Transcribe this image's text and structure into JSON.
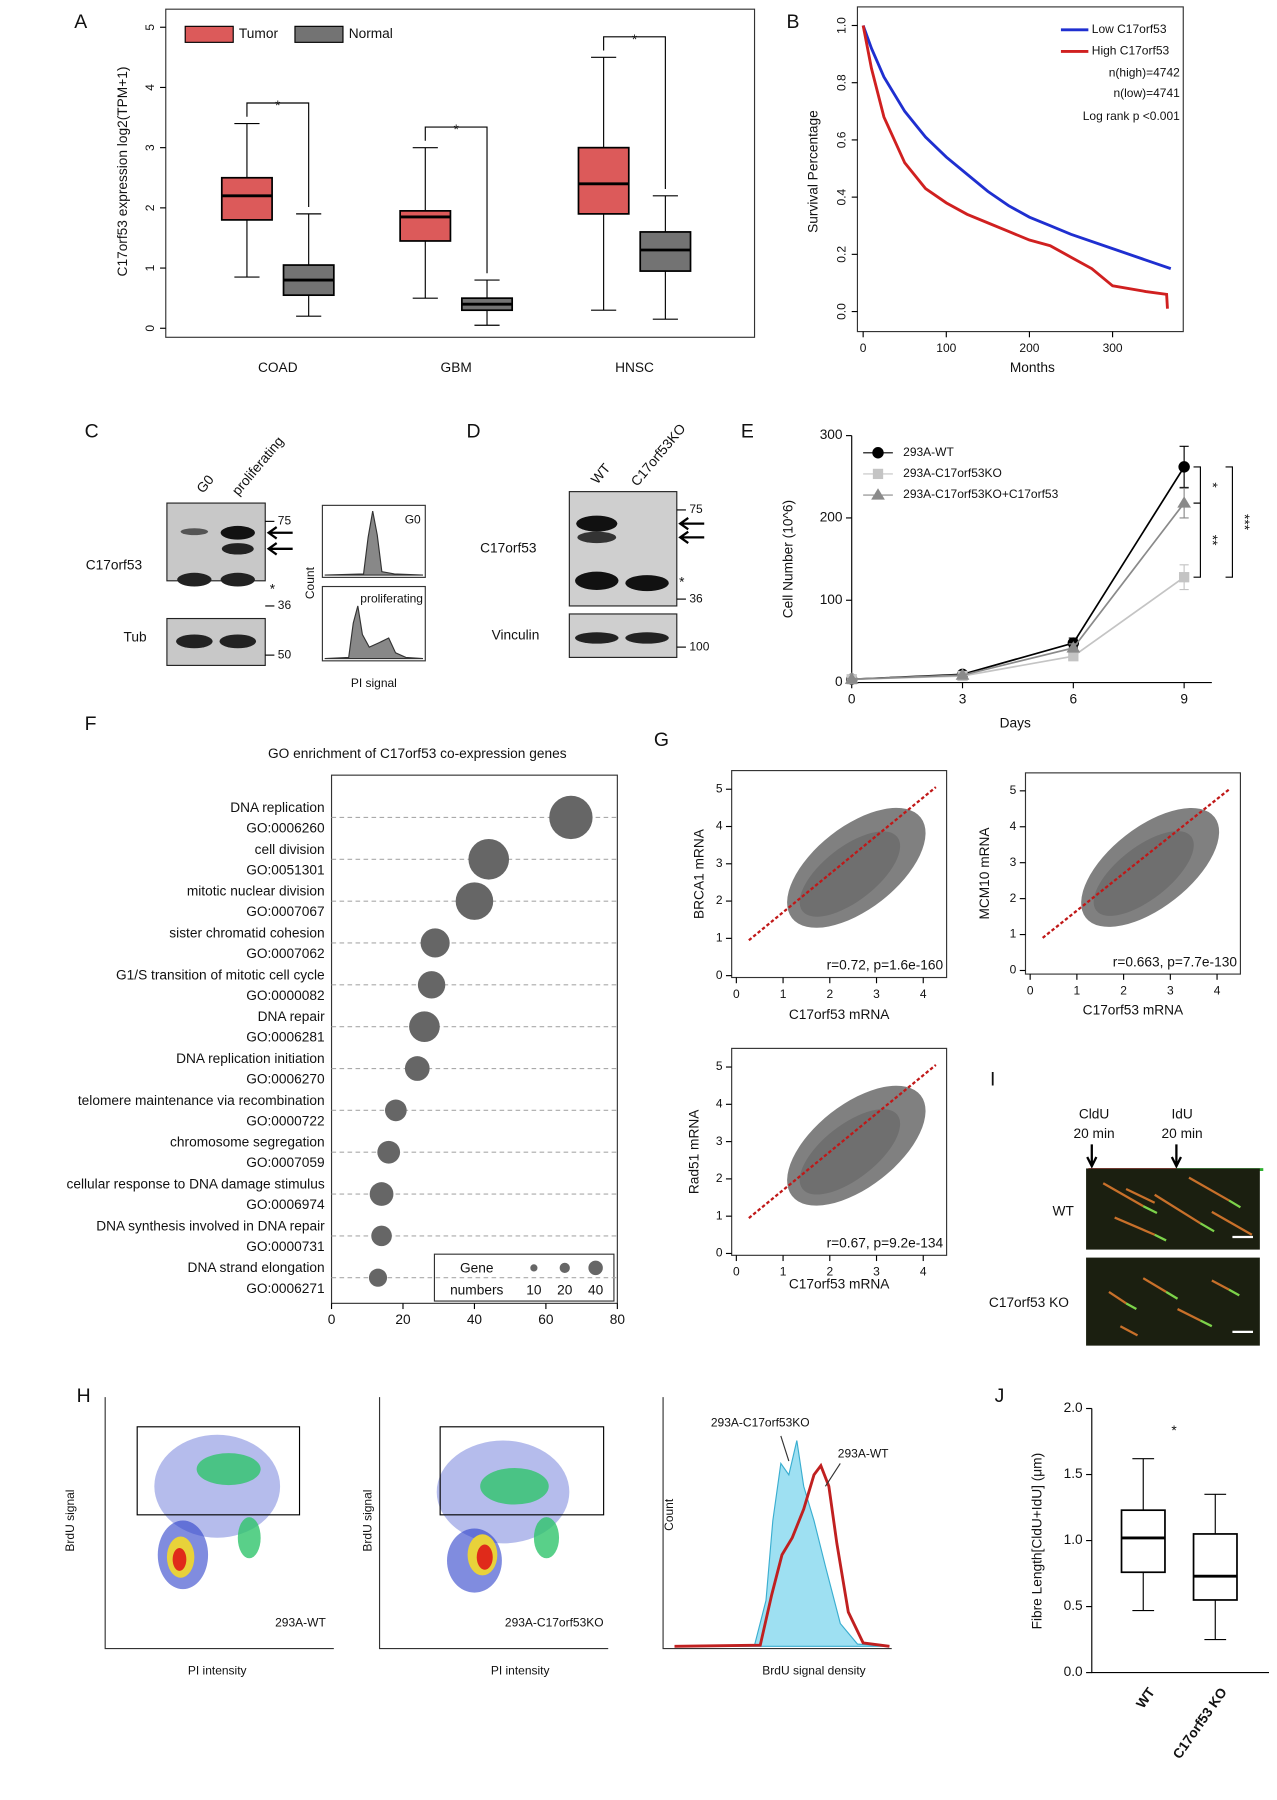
{
  "panels": {
    "A": {
      "label": "A",
      "type": "box",
      "ylabel": "C17orf53 expression log2(TPM+1)",
      "ylim": [
        -0.15,
        5.3
      ],
      "yticks": [
        0,
        1,
        2,
        3,
        4,
        5
      ],
      "categories": [
        "COAD",
        "GBM",
        "HNSC"
      ],
      "series": [
        {
          "name": "Tumor",
          "color": "#dc5a5a",
          "boxes": [
            {
              "min": 0.85,
              "q1": 1.8,
              "median": 2.2,
              "q3": 2.5,
              "max": 3.4
            },
            {
              "min": 0.5,
              "q1": 1.45,
              "median": 1.85,
              "q3": 1.95,
              "max": 3.0
            },
            {
              "min": 0.3,
              "q1": 1.9,
              "median": 2.4,
              "q3": 3.0,
              "max": 4.5
            }
          ]
        },
        {
          "name": "Normal",
          "color": "#737373",
          "boxes": [
            {
              "min": 0.2,
              "q1": 0.55,
              "median": 0.8,
              "q3": 1.05,
              "max": 1.9
            },
            {
              "min": 0.05,
              "q1": 0.3,
              "median": 0.4,
              "q3": 0.5,
              "max": 0.8
            },
            {
              "min": 0.15,
              "q1": 0.95,
              "median": 1.3,
              "q3": 1.6,
              "max": 2.2
            }
          ]
        }
      ],
      "significance": [
        "*",
        "*",
        "*"
      ]
    },
    "B": {
      "label": "B",
      "type": "line",
      "xlabel": "Months",
      "ylabel": "Survival Percentage",
      "xlim": [
        0,
        385
      ],
      "xticks": [
        0,
        100,
        200,
        300
      ],
      "ylim": [
        -0.07,
        1.065
      ],
      "yticks": [
        {
          "value": 0,
          "label": "0.0"
        },
        0.2,
        0.4,
        0.6,
        0.8,
        {
          "value": 1,
          "label": "1.0"
        }
      ],
      "series": [
        {
          "name": "Low C17orf53",
          "color": "#1f2fd0",
          "x": [
            0,
            10,
            25,
            50,
            75,
            100,
            125,
            150,
            175,
            200,
            225,
            250,
            300,
            350,
            370
          ],
          "values": [
            1,
            0.92,
            0.82,
            0.7,
            0.61,
            0.54,
            0.48,
            0.42,
            0.37,
            0.33,
            0.3,
            0.27,
            0.22,
            0.17,
            0.15
          ]
        },
        {
          "name": "High C17orf53",
          "color": "#d02020",
          "x": [
            0,
            10,
            25,
            50,
            75,
            100,
            125,
            150,
            175,
            200,
            225,
            250,
            275,
            300,
            340,
            365,
            366
          ],
          "values": [
            1,
            0.85,
            0.68,
            0.52,
            0.43,
            0.38,
            0.34,
            0.31,
            0.28,
            0.25,
            0.23,
            0.19,
            0.15,
            0.09,
            0.07,
            0.06,
            0.01
          ]
        }
      ],
      "annotations": [
        "n(high)=4742",
        "n(low)=4741",
        "Log rank p <0.001"
      ]
    },
    "C": {
      "label": "C",
      "lanes": [
        "G0",
        "proliferating"
      ],
      "rows": [
        "C17orf53",
        "Tub"
      ],
      "markers": [
        "75",
        "36",
        "50"
      ],
      "band_note": "*",
      "histogram": {
        "ylabel": "Count",
        "xlabel": "PI signal",
        "panels": [
          "G0",
          "proliferating"
        ]
      }
    },
    "D": {
      "label": "D",
      "lanes": [
        "WT",
        "C17orf53KO"
      ],
      "rows": [
        "C17orf53",
        "Vinculin"
      ],
      "markers": [
        "75",
        "36",
        "100"
      ],
      "band_note": "*"
    },
    "E": {
      "label": "E",
      "type": "line",
      "xlabel": "Days",
      "ylabel": "Cell Number (10^6)",
      "x": [
        0,
        3,
        6,
        9
      ],
      "xlim": [
        0,
        9.75
      ],
      "xticks": [
        0,
        3,
        6,
        9
      ],
      "ylim": [
        0,
        300
      ],
      "yticks": [
        0,
        100,
        200,
        300
      ],
      "series": [
        {
          "name": "293A-WT",
          "color": "#000000",
          "marker": "circle",
          "values": [
            4,
            10,
            48,
            262
          ],
          "errors": [
            1,
            2,
            6,
            25
          ]
        },
        {
          "name": "293A-C17orf53KO",
          "color": "#c4c4c4",
          "marker": "square",
          "values": [
            4,
            8,
            32,
            128
          ],
          "errors": [
            1,
            1,
            4,
            15
          ]
        },
        {
          "name": "293A-C17orf53KO+C17orf53",
          "color": "#8a8a8a",
          "marker": "triangle",
          "values": [
            4,
            9,
            42,
            218
          ],
          "errors": [
            1,
            1,
            5,
            18
          ]
        }
      ],
      "significance": [
        "*",
        "**",
        "***"
      ]
    },
    "F": {
      "label": "F",
      "type": "bubble",
      "title": "GO enrichment of C17orf53 co-expression genes",
      "terms": [
        "DNA replication",
        "cell division",
        "mitotic nuclear division",
        "sister chromatid cohesion",
        "G1/S transition of mitotic cell cycle",
        "DNA repair",
        "DNA replication initiation",
        "telomere maintenance via recombination",
        "chromosome segregation",
        "cellular response to DNA damage stimulus",
        "DNA synthesis involved in DNA repair",
        "DNA strand elongation"
      ],
      "go_ids": [
        "GO:0006260",
        "GO:0051301",
        "GO:0007067",
        "GO:0007062",
        "GO:0000082",
        "GO:0006281",
        "GO:0006270",
        "GO:0000722",
        "GO:0007059",
        "GO:0006974",
        "GO:0000731",
        "GO:0006271"
      ],
      "values": [
        67,
        44,
        40,
        29,
        28,
        26,
        24,
        18,
        16,
        14,
        14,
        13
      ],
      "sizes": [
        40,
        35,
        30,
        18,
        16,
        20,
        13,
        10,
        11,
        12,
        9,
        7
      ],
      "xlim": [
        0,
        80
      ],
      "xticks": [
        0,
        20,
        40,
        60,
        80
      ],
      "legend": {
        "title": [
          "Gene",
          "numbers"
        ],
        "sizes": [
          10,
          20,
          40
        ]
      }
    },
    "G": {
      "label": "G",
      "plots": [
        {
          "ylabel": "BRCA1 mRNA",
          "xlabel": "C17orf53 mRNA",
          "stat": "r=0.72, p=1.6e-160",
          "xlim": [
            -0.1,
            4.5
          ],
          "xticks": [
            0,
            1,
            2,
            3,
            4
          ],
          "ylim": [
            -0.05,
            5.5
          ],
          "yticks": [
            0,
            1,
            2,
            3,
            4,
            5
          ]
        },
        {
          "ylabel": "MCM10 mRNA",
          "xlabel": "C17orf53 mRNA",
          "stat": "r=0.663, p=7.7e-130",
          "xlim": [
            -0.1,
            4.5
          ],
          "xticks": [
            0,
            1,
            2,
            3,
            4
          ],
          "ylim": [
            -0.1,
            5.5
          ],
          "yticks": [
            0,
            1,
            2,
            3,
            4,
            5
          ]
        },
        {
          "ylabel": "Rad51 mRNA",
          "xlabel": "C17orf53 mRNA",
          "stat": "r=0.67, p=9.2e-134",
          "xlim": [
            -0.1,
            4.5
          ],
          "xticks": [
            0,
            1,
            2,
            3,
            4
          ],
          "ylim": [
            -0.05,
            5.5
          ],
          "yticks": [
            0,
            1,
            2,
            3,
            4,
            5
          ]
        }
      ]
    },
    "H": {
      "label": "H",
      "plots": [
        {
          "ylabel": "BrdU signal",
          "xlabel": "PI intensity",
          "sample": "293A-WT"
        },
        {
          "ylabel": "BrdU signal",
          "xlabel": "PI intensity",
          "sample": "293A-C17orf53KO"
        }
      ],
      "histogram": {
        "ylabel": "Count",
        "xlabel": "BrdU signal density",
        "series": [
          "293A-C17orf53KO",
          "293A-WT"
        ]
      }
    },
    "I": {
      "label": "I",
      "pulses": [
        {
          "name": "CldU",
          "time": "20 min"
        },
        {
          "name": "IdU",
          "time": "20 min"
        }
      ],
      "samples": [
        "WT",
        "C17orf53 KO"
      ]
    },
    "J": {
      "label": "J",
      "type": "box",
      "ylabel": "Fibre Length[CldU+IdU] (μm)",
      "categories": [
        "WT",
        "C17orf53 KO"
      ],
      "ylim": [
        0,
        2.0
      ],
      "yticks": [
        {
          "value": 0,
          "label": "0.0"
        },
        0.5,
        {
          "value": 1,
          "label": "1.0"
        },
        1.5,
        {
          "value": 2,
          "label": "2.0"
        }
      ],
      "boxes": [
        {
          "min": 0.47,
          "q1": 0.76,
          "median": 1.02,
          "q3": 1.23,
          "max": 1.62
        },
        {
          "min": 0.25,
          "q1": 0.55,
          "median": 0.73,
          "q3": 1.05,
          "max": 1.35
        }
      ],
      "significance": "*"
    }
  }
}
